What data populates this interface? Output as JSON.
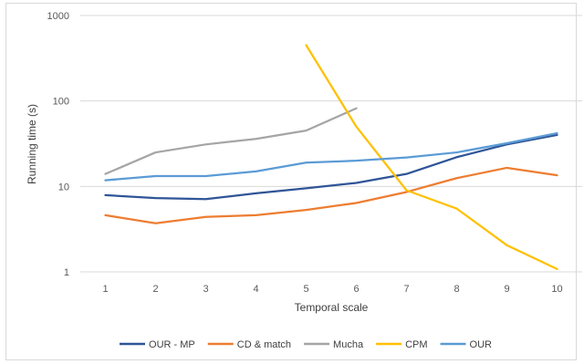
{
  "chart_data": {
    "type": "line",
    "title": "",
    "xlabel": "Temporal scale",
    "ylabel": "Running time (s)",
    "yscale": "log",
    "ylim": [
      1,
      1000
    ],
    "yticks": [
      "1",
      "10",
      "100",
      "1000"
    ],
    "categories": [
      "1",
      "2",
      "3",
      "4",
      "5",
      "6",
      "7",
      "8",
      "9",
      "10"
    ],
    "grid": "horizontal",
    "legend": "bottom",
    "series": [
      {
        "name": "OUR - MP",
        "color": "#2f5597",
        "values": [
          7.9,
          7.3,
          7.1,
          8.3,
          9.5,
          11,
          14,
          22,
          31,
          40
        ]
      },
      {
        "name": "CD & match",
        "color": "#ed7d31",
        "values": [
          4.6,
          3.7,
          4.4,
          4.6,
          5.3,
          6.4,
          8.6,
          12.5,
          16.5,
          13.5
        ]
      },
      {
        "name": "Mucha",
        "color": "#a5a5a5",
        "values": [
          14,
          25,
          31,
          36,
          45,
          82,
          null,
          null,
          null,
          null
        ]
      },
      {
        "name": "CPM",
        "color": "#ffc000",
        "values": [
          null,
          null,
          null,
          null,
          450,
          50,
          9,
          5.5,
          2.05,
          1.08
        ]
      },
      {
        "name": "OUR",
        "color": "#5b9bd5",
        "values": [
          11.8,
          13.2,
          13.2,
          15,
          19,
          20,
          21.8,
          25,
          32,
          42
        ]
      }
    ]
  }
}
